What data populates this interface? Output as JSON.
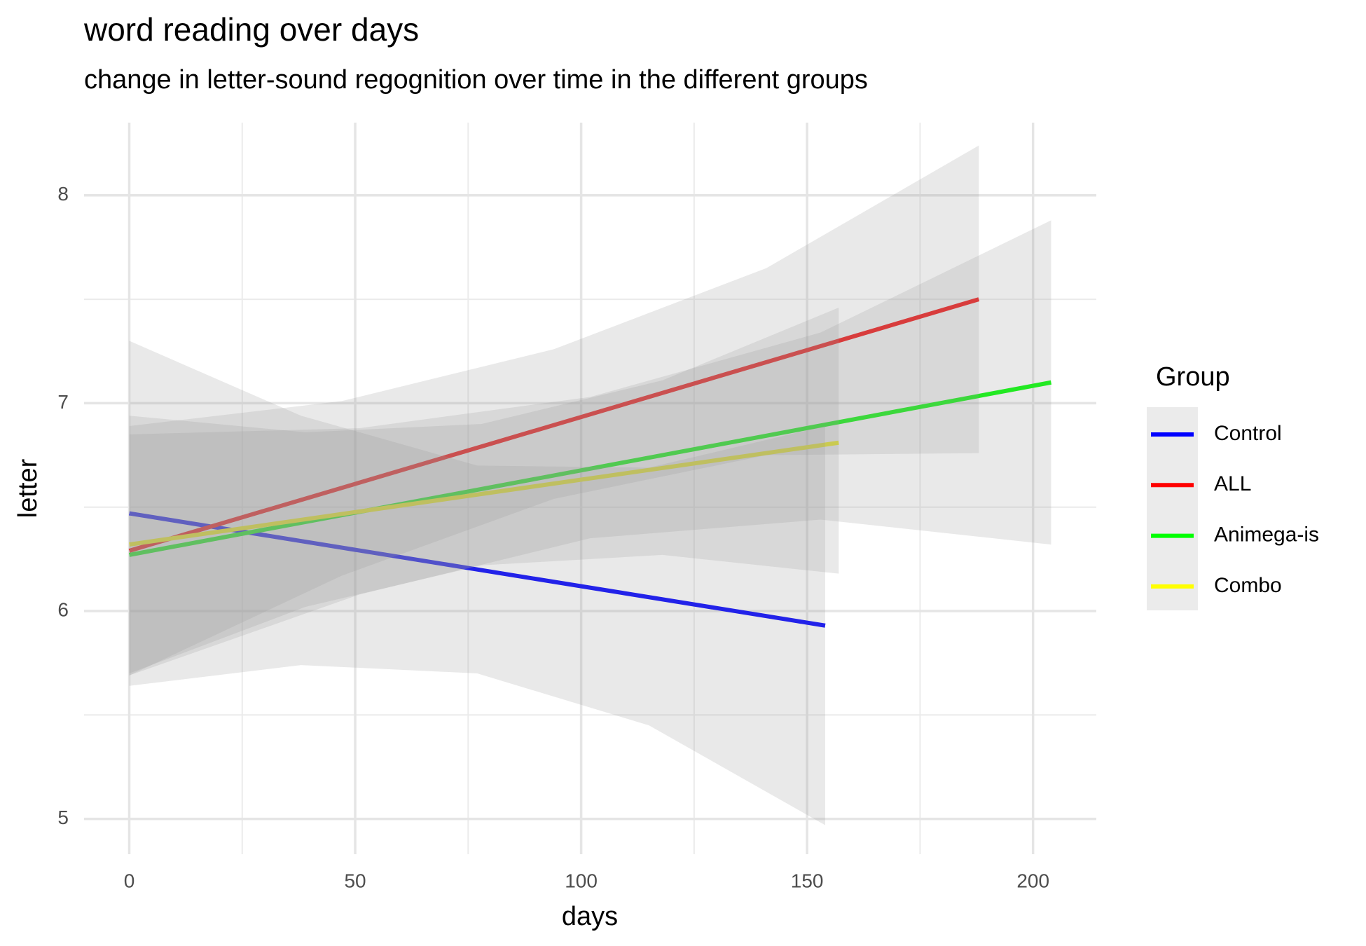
{
  "chart_data": {
    "type": "line",
    "title": "word reading over days",
    "subtitle": "change in letter-sound regognition over time in the different groups",
    "x_label": "days",
    "y_label": "letter",
    "legend_title": "Group",
    "legend_position": "right",
    "xlim": [
      -10,
      214
    ],
    "ylim": [
      4.83,
      8.35
    ],
    "xticks": [
      0,
      50,
      100,
      150,
      200
    ],
    "yticks": [
      5,
      6,
      7,
      8
    ],
    "xminor": [
      25,
      75,
      125,
      175
    ],
    "yminor": [
      5.5,
      6.5,
      7.5
    ],
    "grid": true,
    "band_color": "#999999",
    "series": [
      {
        "name": "Control",
        "color": "#0000ff",
        "x": [
          0,
          154
        ],
        "values": [
          6.47,
          5.93
        ],
        "ci_x": [
          0,
          38,
          77,
          115,
          154
        ],
        "ci_lower": [
          5.64,
          5.74,
          5.7,
          5.45,
          4.97
        ],
        "ci_upper": [
          7.3,
          6.94,
          6.7,
          6.69,
          6.89
        ]
      },
      {
        "name": "ALL",
        "color": "#ff0000",
        "x": [
          0,
          188
        ],
        "values": [
          6.29,
          7.5
        ],
        "ci_x": [
          0,
          47,
          94,
          141,
          188
        ],
        "ci_lower": [
          5.69,
          6.17,
          6.54,
          6.75,
          6.76
        ],
        "ci_upper": [
          6.89,
          7.01,
          7.26,
          7.65,
          8.24
        ]
      },
      {
        "name": "Animega-is",
        "color": "#00ff00",
        "x": [
          0,
          204
        ],
        "values": [
          6.27,
          7.1
        ],
        "ci_x": [
          0,
          51,
          102,
          153,
          204
        ],
        "ci_lower": [
          5.69,
          6.08,
          6.35,
          6.44,
          6.32
        ],
        "ci_upper": [
          6.85,
          6.88,
          7.03,
          7.34,
          7.88
        ]
      },
      {
        "name": "Combo",
        "color": "#ffff00",
        "x": [
          0,
          157
        ],
        "values": [
          6.32,
          6.81
        ],
        "ci_x": [
          0,
          39,
          78,
          118,
          157
        ],
        "ci_lower": [
          5.7,
          6.02,
          6.22,
          6.27,
          6.18
        ],
        "ci_upper": [
          6.94,
          6.86,
          6.9,
          7.11,
          7.46
        ]
      }
    ]
  }
}
